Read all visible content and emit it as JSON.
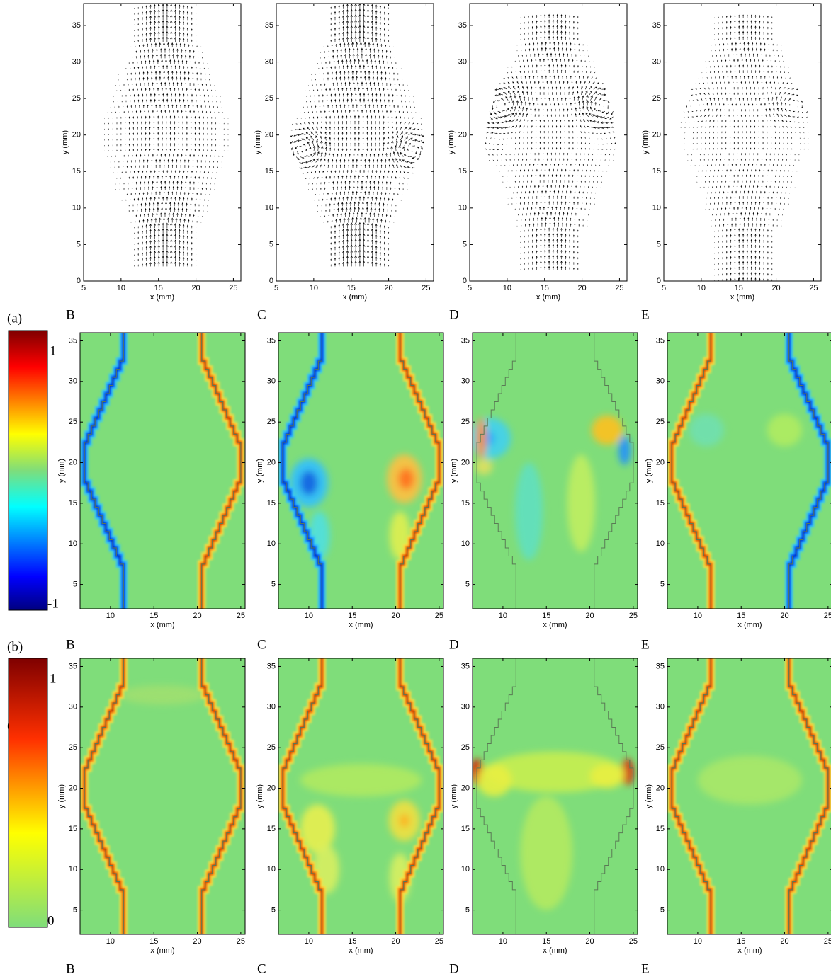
{
  "figure": {
    "quiver_axes": {
      "xlabel": "x (mm)",
      "ylabel": "y (mm)",
      "xlim": [
        5,
        26
      ],
      "ylim": [
        0,
        38
      ],
      "xticks": [
        5,
        10,
        15,
        20,
        25
      ],
      "yticks": [
        0,
        5,
        10,
        15,
        20,
        25,
        30,
        35
      ]
    },
    "map_axes": {
      "xlabel": "x (mm)",
      "ylabel": "y (mm)",
      "xlim": [
        6.5,
        25.5
      ],
      "ylim": [
        2,
        36
      ],
      "xticks": [
        10,
        15,
        20,
        25
      ],
      "yticks": [
        5,
        10,
        15,
        20,
        25,
        30,
        35
      ]
    },
    "rows": [
      {
        "label": "(a)",
        "letters": [
          "B",
          "C",
          "D",
          "E"
        ]
      },
      {
        "label": "(b)",
        "letters": [
          "B",
          "C",
          "D",
          "E"
        ],
        "colorbar": [
          -1,
          1
        ]
      },
      {
        "label": "(c)",
        "letters": [
          "B",
          "C",
          "D",
          "E"
        ],
        "colorbar": [
          0,
          1
        ]
      }
    ]
  }
}
